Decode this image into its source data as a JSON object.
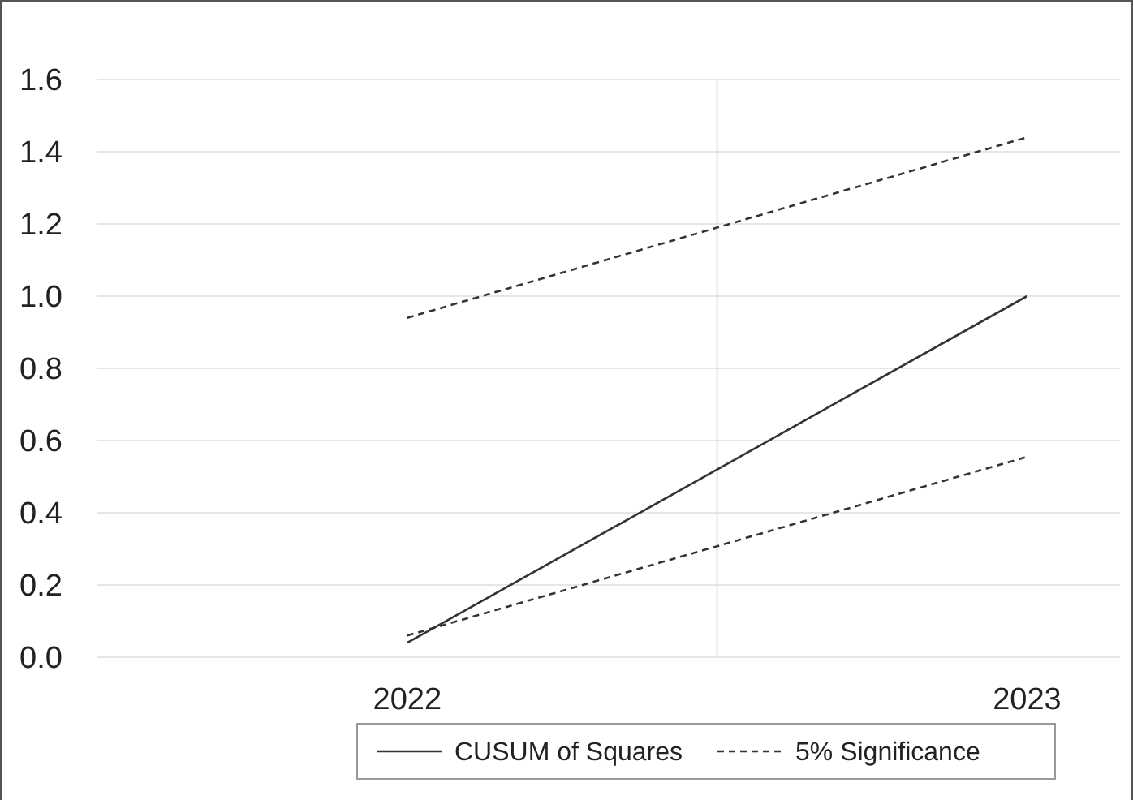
{
  "chart_data": {
    "type": "line",
    "x": [
      2022,
      2023
    ],
    "xlim": [
      2021.5,
      2023.15
    ],
    "xticks": [
      2022,
      2023
    ],
    "ylim": [
      0,
      1.6
    ],
    "yticks": [
      {
        "value": 0,
        "label": "0.0"
      },
      {
        "value": 0.2,
        "label": "0.2"
      },
      {
        "value": 0.4,
        "label": "0.4"
      },
      {
        "value": 0.6,
        "label": "0.6"
      },
      {
        "value": 0.8,
        "label": "0.8"
      },
      {
        "value": 1,
        "label": "1.0"
      },
      {
        "value": 1.2,
        "label": "1.2"
      },
      {
        "value": 1.4,
        "label": "1.4"
      },
      {
        "value": 1.6,
        "label": "1.6"
      }
    ],
    "grid": "y",
    "legend": "bottom",
    "marker": "none",
    "ref_lines": [
      {
        "axis": "x",
        "value": 2022.5,
        "color": "#e0e0e0"
      }
    ],
    "series": [
      {
        "name": "CUSUM of Squares",
        "color": "#333333",
        "values": [
          0.04,
          1.0
        ],
        "line_style": "solid"
      },
      {
        "name": "5% Significance",
        "color": "#333333",
        "values": [
          0.94,
          1.44
        ],
        "line_style": "dashed"
      },
      {
        "color": "#333333",
        "values": [
          0.06,
          0.555
        ],
        "line_style": "dashed"
      }
    ]
  }
}
